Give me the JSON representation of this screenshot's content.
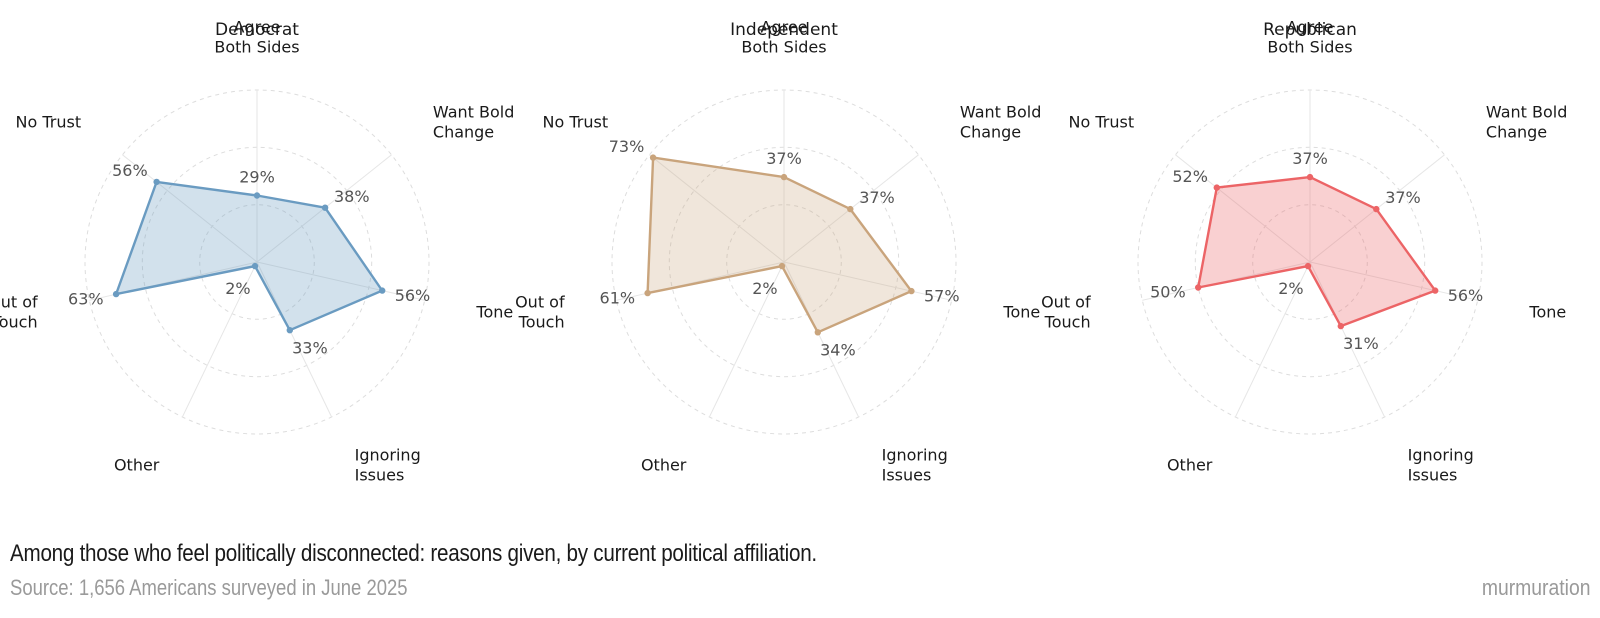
{
  "chart_data": {
    "type": "radar",
    "axes": [
      "Agree\nBoth Sides",
      "Want Bold\nChange",
      "Tone",
      "Ignoring\nIssues",
      "Other",
      "Out of\nTouch",
      "No Trust"
    ],
    "rmax": 75,
    "grid_rings": [
      25,
      50,
      75
    ],
    "value_suffix": "%",
    "panels": [
      {
        "title": "Democrat",
        "color": "#6a9bc1",
        "fill": "rgba(106,155,193,0.30)",
        "values": [
          29,
          38,
          56,
          33,
          2,
          63,
          56
        ]
      },
      {
        "title": "Independent",
        "color": "#c9a47c",
        "fill": "rgba(201,164,124,0.28)",
        "values": [
          37,
          37,
          57,
          34,
          2,
          61,
          73
        ]
      },
      {
        "title": "Republican",
        "color": "#ec6466",
        "fill": "rgba(236,100,102,0.30)",
        "values": [
          37,
          37,
          56,
          31,
          2,
          50,
          52
        ]
      }
    ]
  },
  "caption": "Among those who feel politically disconnected: reasons given, by current political affiliation.",
  "source": "Source: 1,656 Americans surveyed in June 2025",
  "brand": "murmuration"
}
